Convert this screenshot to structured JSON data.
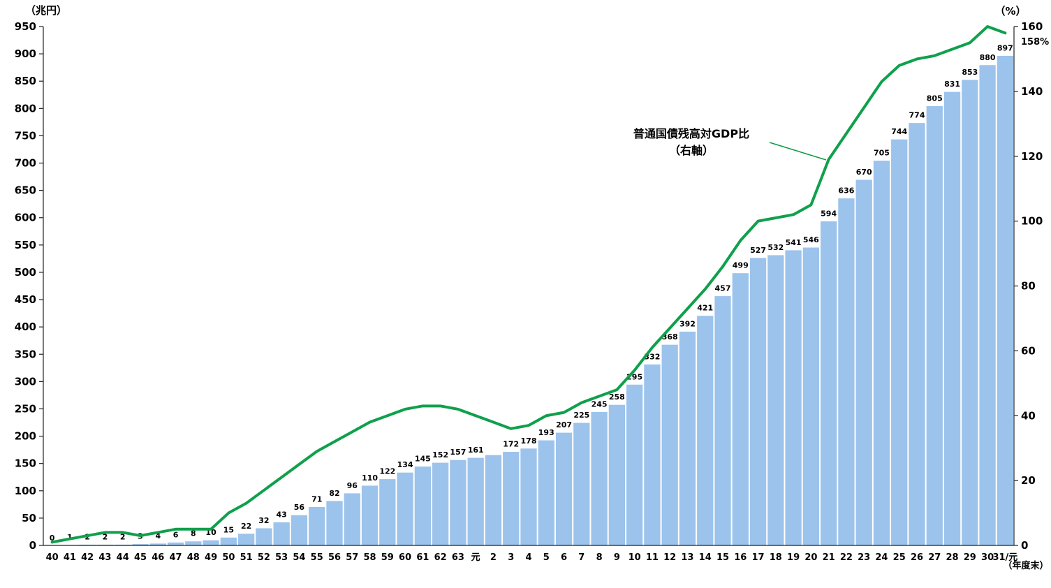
{
  "chart_data": {
    "type": "bar",
    "combo": "bar+line",
    "title": "",
    "grid": false,
    "legend_position": "none",
    "left_axis": {
      "unit": "（兆円）",
      "min": 0,
      "max": 950,
      "step": 50
    },
    "right_axis": {
      "unit": "（%）",
      "min": 0,
      "max": 160,
      "step": 20
    },
    "x_axis": {
      "note": "（年度末）"
    },
    "categories": [
      "40",
      "41",
      "42",
      "43",
      "44",
      "45",
      "46",
      "47",
      "48",
      "49",
      "50",
      "51",
      "52",
      "53",
      "54",
      "55",
      "56",
      "57",
      "58",
      "59",
      "60",
      "61",
      "62",
      "63",
      "元",
      "2",
      "3",
      "4",
      "5",
      "6",
      "7",
      "8",
      "9",
      "10",
      "11",
      "12",
      "13",
      "14",
      "15",
      "16",
      "17",
      "18",
      "19",
      "20",
      "21",
      "22",
      "23",
      "24",
      "25",
      "26",
      "27",
      "28",
      "29",
      "30",
      "31/元"
    ],
    "series": [
      {
        "name": "普通国債残高",
        "type": "bar",
        "axis": "left",
        "color": "#9CC3EC",
        "values": [
          0,
          1,
          2,
          2,
          2,
          3,
          4,
          6,
          8,
          10,
          15,
          22,
          32,
          43,
          56,
          71,
          82,
          96,
          110,
          122,
          134,
          145,
          152,
          157,
          161,
          166,
          172,
          178,
          193,
          207,
          225,
          245,
          258,
          295,
          332,
          368,
          392,
          421,
          457,
          499,
          527,
          532,
          541,
          546,
          594,
          636,
          670,
          705,
          744,
          774,
          805,
          831,
          853,
          880,
          897
        ],
        "value_labels": [
          "0",
          "1",
          "2",
          "2",
          "2",
          "3",
          "4",
          "6",
          "8",
          "10",
          "15",
          "22",
          "32",
          "43",
          "56",
          "71",
          "82",
          "96",
          "110",
          "122",
          "134",
          "145",
          "152",
          "157",
          "161",
          "",
          "172",
          "178",
          "193",
          "207",
          "225",
          "245",
          "258",
          "295",
          "332",
          "368",
          "392",
          "421",
          "457",
          "499",
          "527",
          "532",
          "541",
          "546",
          "594",
          "636",
          "670",
          "705",
          "744",
          "774",
          "805",
          "831",
          "853",
          "880",
          "897"
        ]
      },
      {
        "name": "普通国債残高対GDP比（右軸）",
        "type": "line",
        "axis": "right",
        "color": "#0FA04C",
        "values": [
          1,
          2,
          3,
          4,
          4,
          3,
          4,
          5,
          5,
          5,
          10,
          13,
          17,
          21,
          25,
          29,
          32,
          35,
          38,
          40,
          42,
          43,
          43,
          42,
          40,
          38,
          36,
          37,
          40,
          41,
          44,
          46,
          48,
          54,
          61,
          67,
          73,
          79,
          86,
          94,
          100,
          101,
          102,
          105,
          119,
          127,
          135,
          143,
          148,
          150,
          151,
          153,
          155,
          160,
          158
        ],
        "end_label": "158%"
      }
    ],
    "annotation": {
      "line1": "普通国債残高対GDP比",
      "line2": "（右軸）",
      "color": "#0C9C45"
    }
  }
}
